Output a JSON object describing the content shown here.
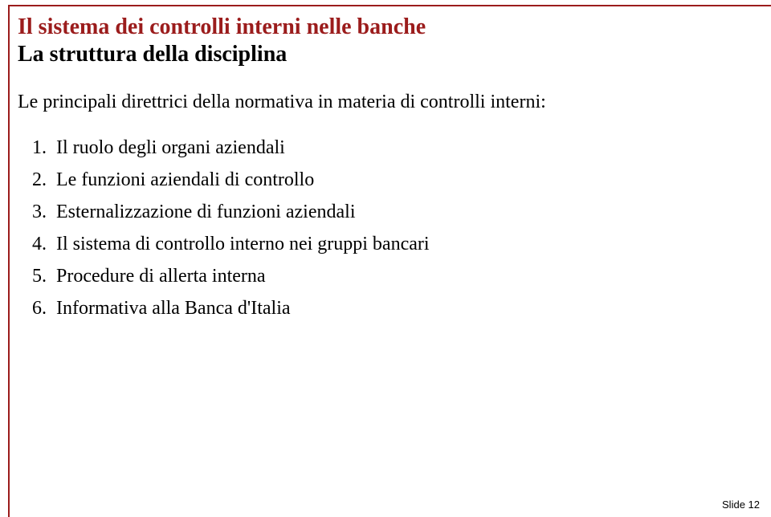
{
  "frame_color": "#9b1c1c",
  "title": "Il sistema dei controlli interni nelle banche",
  "subtitle": "La struttura della disciplina",
  "intro": "Le principali direttrici della normativa in materia di controlli interni:",
  "items": [
    "Il ruolo degli organi aziendali",
    "Le funzioni aziendali di controllo",
    "Esternalizzazione di funzioni aziendali",
    "Il sistema di controllo interno nei gruppi bancari",
    "Procedure di allerta interna",
    "Informativa alla Banca d'Italia"
  ],
  "footer": "Slide 12",
  "title_color": "#9b1c1c",
  "text_color": "#000000",
  "background_color": "#ffffff",
  "title_fontsize": 28,
  "body_fontsize": 24,
  "footer_fontsize": 13
}
